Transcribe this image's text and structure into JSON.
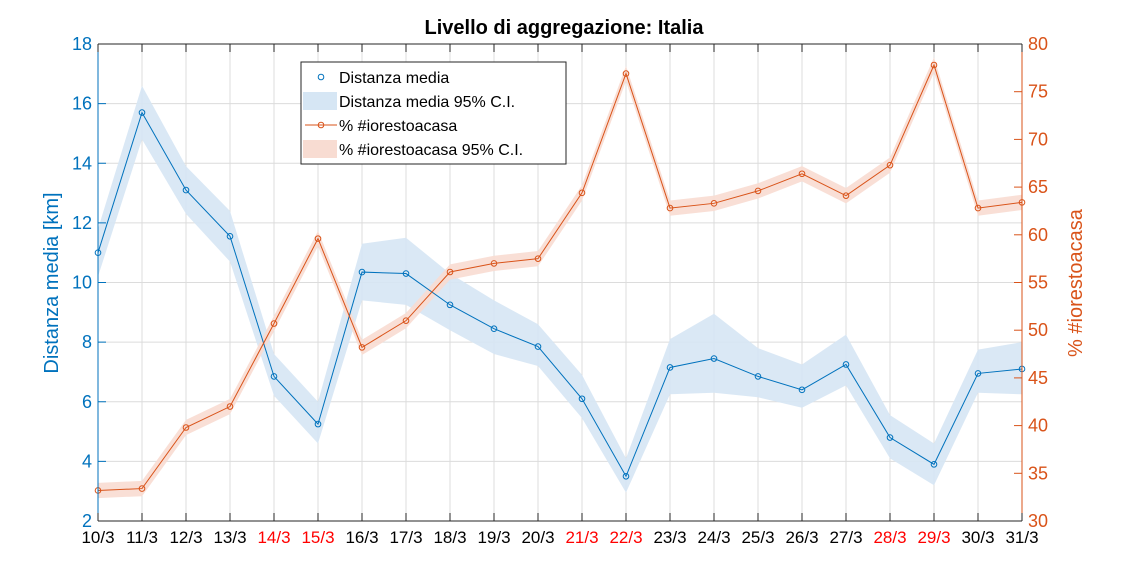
{
  "colors": {
    "left_series": "#0072BD",
    "left_band": "#D6E6F4",
    "right_series": "#D95319",
    "right_band": "#F8DCD2",
    "weekend_tick": "#FF0000",
    "grid": "#DCDCDC",
    "axis": "#262626"
  },
  "chart_data": {
    "type": "line",
    "title": "Livello di aggregazione: Italia",
    "ylabel_left": "Distanza media [km]",
    "ylabel_right": "% #iorestoacasa",
    "ylim_left": [
      2,
      18
    ],
    "ylim_right": [
      30,
      80
    ],
    "yticks_left": [
      "2",
      "4",
      "6",
      "8",
      "10",
      "12",
      "14",
      "16",
      "18"
    ],
    "yticks_right": [
      "30",
      "35",
      "40",
      "45",
      "50",
      "55",
      "60",
      "65",
      "70",
      "75",
      "80"
    ],
    "grid": true,
    "legend_position": "top-left",
    "categories": [
      "10/3",
      "11/3",
      "12/3",
      "13/3",
      "14/3",
      "15/3",
      "16/3",
      "17/3",
      "18/3",
      "19/3",
      "20/3",
      "21/3",
      "22/3",
      "23/3",
      "24/3",
      "25/3",
      "26/3",
      "27/3",
      "28/3",
      "29/3",
      "30/3",
      "31/3"
    ],
    "weekend": [
      false,
      false,
      false,
      false,
      true,
      true,
      false,
      false,
      false,
      false,
      false,
      true,
      true,
      false,
      false,
      false,
      false,
      false,
      true,
      true,
      false,
      false
    ],
    "series": [
      {
        "name": "Distanza media",
        "axis": "left",
        "values": [
          11.0,
          15.7,
          13.1,
          11.55,
          6.85,
          5.25,
          10.35,
          10.3,
          9.25,
          8.45,
          7.85,
          6.1,
          3.5,
          7.15,
          7.45,
          6.85,
          6.4,
          7.25,
          4.8,
          3.9,
          6.95,
          7.1
        ],
        "ci_lower": [
          10.2,
          14.8,
          12.3,
          10.7,
          6.2,
          4.6,
          9.4,
          9.25,
          8.4,
          7.6,
          7.2,
          5.45,
          2.95,
          6.25,
          6.3,
          6.15,
          5.8,
          6.55,
          4.1,
          3.2,
          6.3,
          6.25
        ],
        "ci_upper": [
          11.8,
          16.6,
          13.9,
          12.4,
          7.6,
          6.0,
          11.3,
          11.5,
          10.3,
          9.4,
          8.6,
          6.9,
          4.1,
          8.1,
          8.95,
          7.8,
          7.25,
          8.25,
          5.55,
          4.6,
          7.75,
          8.0
        ],
        "legend_ci": "Distanza media 95% C.I."
      },
      {
        "name": "% #iorestoacasa",
        "axis": "right",
        "values": [
          33.2,
          33.4,
          39.8,
          42.0,
          50.7,
          59.6,
          48.2,
          51.0,
          56.1,
          57.0,
          57.5,
          64.4,
          76.9,
          62.8,
          63.3,
          64.6,
          66.4,
          64.1,
          67.3,
          77.8,
          62.8,
          63.4
        ],
        "ci_lower": [
          32.4,
          32.6,
          39.0,
          41.2,
          49.9,
          58.8,
          47.4,
          50.2,
          55.3,
          56.2,
          56.7,
          63.6,
          76.1,
          62.0,
          62.5,
          63.8,
          65.6,
          63.3,
          66.5,
          77.0,
          62.0,
          62.6
        ],
        "ci_upper": [
          34.0,
          34.2,
          40.6,
          42.8,
          51.5,
          60.4,
          49.0,
          51.8,
          56.9,
          57.8,
          58.3,
          65.2,
          77.7,
          63.6,
          64.1,
          65.4,
          67.2,
          64.9,
          68.1,
          78.6,
          63.6,
          64.2
        ],
        "legend_ci": "% #iorestoacasa 95% C.I."
      }
    ]
  }
}
